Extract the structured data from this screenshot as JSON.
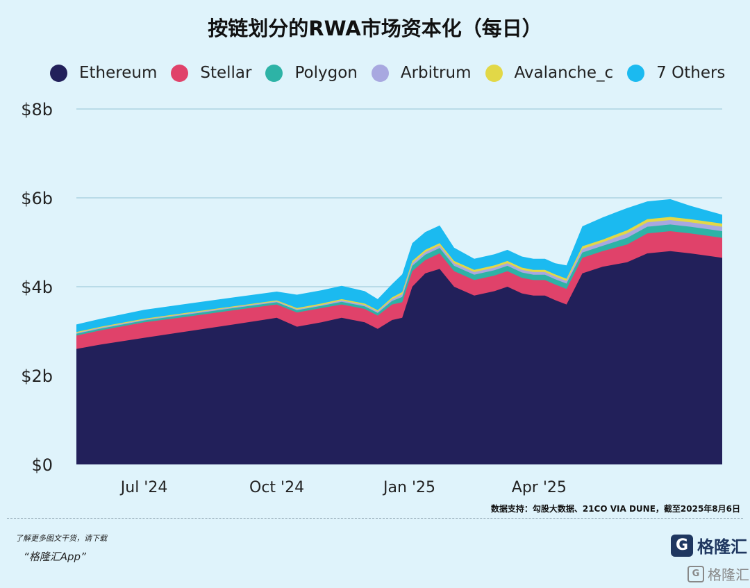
{
  "title": "按链划分的RWA市场资本化（每日）",
  "source": "数据支持：勾股大数据、21CO VIA DUNE，截至2025年8月6日",
  "promo": {
    "line1": "了解更多图文干货，请下载",
    "line2": "“格隆汇App”"
  },
  "logo": {
    "mark": "G",
    "text": "格隆汇"
  },
  "watermark": {
    "mark": "G",
    "text": "格隆汇"
  },
  "chart_data": {
    "type": "area",
    "stacked": true,
    "title": "按链划分的RWA市场资本化（每日）",
    "xlabel": "",
    "ylabel": "",
    "ylim": [
      0,
      8
    ],
    "y_unit": "billion USD",
    "yticks": [
      {
        "value": 0,
        "label": "$0"
      },
      {
        "value": 2,
        "label": "$2b"
      },
      {
        "value": 4,
        "label": "$4b"
      },
      {
        "value": 6,
        "label": "$6b"
      },
      {
        "value": 8,
        "label": "$8b"
      }
    ],
    "xlim": [
      "2024-05-15",
      "2025-08-06"
    ],
    "xticks": [
      {
        "date": "2024-07-01",
        "label": "Jul '24"
      },
      {
        "date": "2024-10-01",
        "label": "Oct '24"
      },
      {
        "date": "2025-01-01",
        "label": "Jan '25"
      },
      {
        "date": "2025-04-01",
        "label": "Apr '25"
      }
    ],
    "grid": "horizontal",
    "legend_position": "top",
    "dates": [
      "2024-05-15",
      "2024-06-01",
      "2024-07-01",
      "2024-08-01",
      "2024-09-01",
      "2024-10-01",
      "2024-10-15",
      "2024-11-01",
      "2024-11-15",
      "2024-12-01",
      "2024-12-10",
      "2024-12-20",
      "2024-12-27",
      "2025-01-03",
      "2025-01-12",
      "2025-01-22",
      "2025-02-01",
      "2025-02-15",
      "2025-03-01",
      "2025-03-10",
      "2025-03-20",
      "2025-03-28",
      "2025-04-05",
      "2025-04-12",
      "2025-04-20",
      "2025-05-01",
      "2025-05-15",
      "2025-06-01",
      "2025-06-15",
      "2025-07-01",
      "2025-07-15",
      "2025-08-06"
    ],
    "series": [
      {
        "name": "Ethereum",
        "color": "#22205a",
        "values": [
          2.6,
          2.7,
          2.85,
          3.0,
          3.15,
          3.3,
          3.1,
          3.2,
          3.3,
          3.2,
          3.05,
          3.25,
          3.3,
          4.0,
          4.3,
          4.4,
          4.0,
          3.8,
          3.9,
          4.0,
          3.85,
          3.8,
          3.8,
          3.7,
          3.6,
          4.3,
          4.45,
          4.55,
          4.75,
          4.8,
          4.75,
          4.65
        ]
      },
      {
        "name": "Stellar",
        "color": "#e0426a",
        "values": [
          0.3,
          0.32,
          0.35,
          0.33,
          0.32,
          0.3,
          0.32,
          0.32,
          0.3,
          0.3,
          0.3,
          0.35,
          0.35,
          0.35,
          0.3,
          0.35,
          0.35,
          0.35,
          0.35,
          0.35,
          0.35,
          0.35,
          0.35,
          0.35,
          0.35,
          0.35,
          0.35,
          0.4,
          0.45,
          0.45,
          0.45,
          0.45
        ]
      },
      {
        "name": "Polygon",
        "color": "#2db3a6",
        "values": [
          0.04,
          0.04,
          0.04,
          0.05,
          0.05,
          0.05,
          0.05,
          0.05,
          0.06,
          0.06,
          0.06,
          0.08,
          0.12,
          0.12,
          0.12,
          0.12,
          0.12,
          0.12,
          0.12,
          0.12,
          0.12,
          0.12,
          0.12,
          0.12,
          0.12,
          0.12,
          0.12,
          0.15,
          0.15,
          0.15,
          0.15,
          0.15
        ]
      },
      {
        "name": "Arbitrum",
        "color": "#a8a8e0",
        "values": [
          0.02,
          0.02,
          0.02,
          0.02,
          0.02,
          0.02,
          0.02,
          0.02,
          0.03,
          0.03,
          0.03,
          0.04,
          0.06,
          0.06,
          0.06,
          0.06,
          0.06,
          0.06,
          0.06,
          0.06,
          0.06,
          0.06,
          0.06,
          0.06,
          0.06,
          0.08,
          0.08,
          0.1,
          0.1,
          0.1,
          0.1,
          0.1
        ]
      },
      {
        "name": "Avalanche_c",
        "color": "#e2d847",
        "values": [
          0.02,
          0.02,
          0.02,
          0.02,
          0.02,
          0.02,
          0.03,
          0.03,
          0.03,
          0.03,
          0.03,
          0.04,
          0.05,
          0.05,
          0.05,
          0.05,
          0.05,
          0.05,
          0.05,
          0.05,
          0.05,
          0.05,
          0.05,
          0.05,
          0.05,
          0.06,
          0.06,
          0.07,
          0.07,
          0.07,
          0.07,
          0.07
        ]
      },
      {
        "name": "7 Others",
        "color": "#1bbaf0",
        "values": [
          0.17,
          0.18,
          0.2,
          0.2,
          0.2,
          0.2,
          0.3,
          0.3,
          0.3,
          0.28,
          0.25,
          0.3,
          0.4,
          0.4,
          0.4,
          0.4,
          0.3,
          0.25,
          0.25,
          0.25,
          0.25,
          0.25,
          0.25,
          0.25,
          0.3,
          0.45,
          0.5,
          0.5,
          0.4,
          0.4,
          0.3,
          0.2
        ]
      }
    ]
  }
}
